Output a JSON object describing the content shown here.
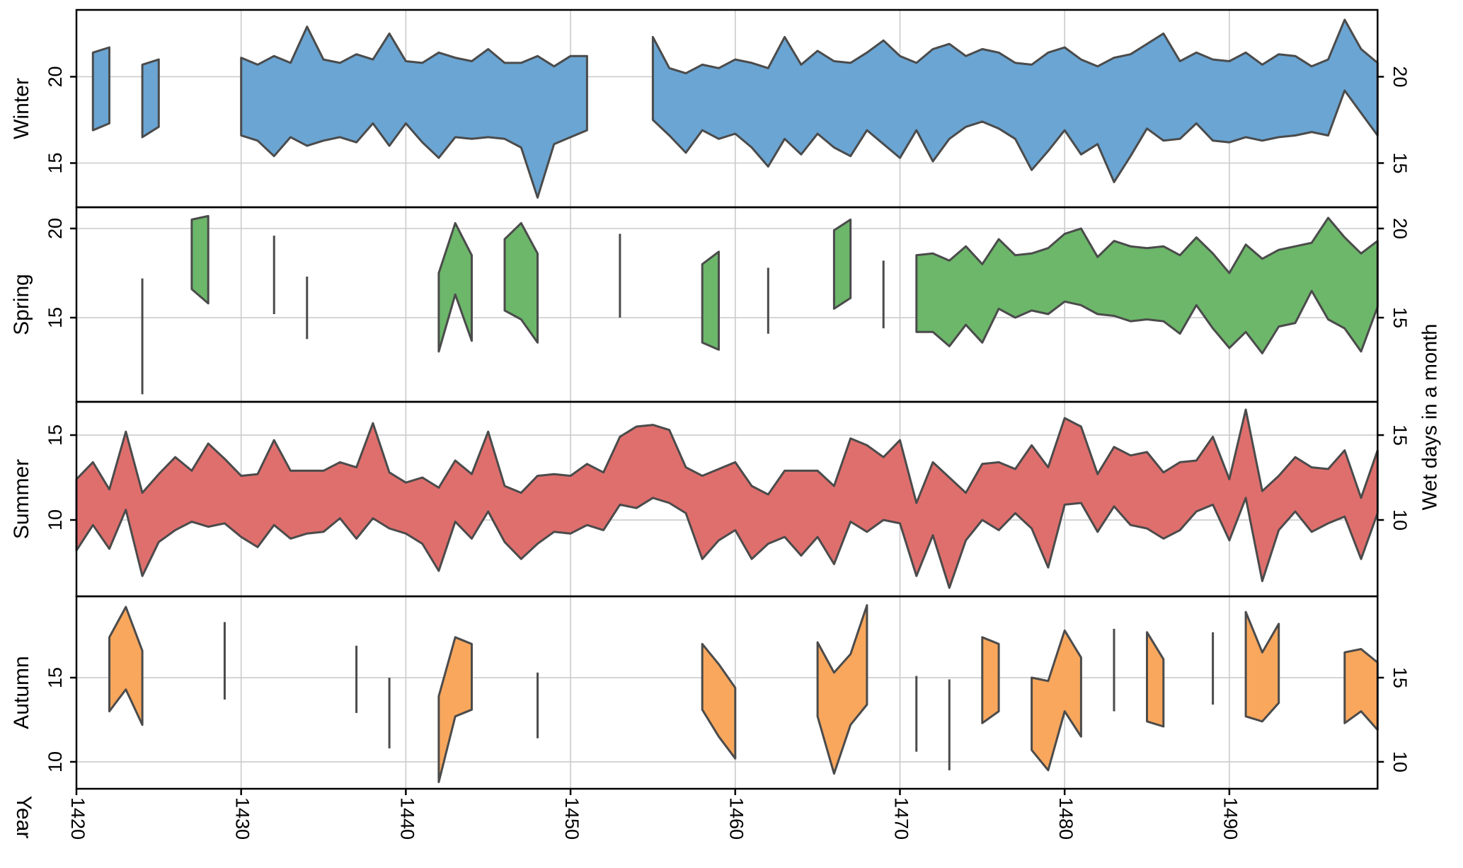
{
  "figure": {
    "xlabel": "Year",
    "ylabel_right": "Wet days in a month",
    "background": "#ffffff",
    "grid_color": "#cbcbcb",
    "border_color": "#000000",
    "outline_color": "#4b4b4b"
  },
  "chart_data": {
    "type": "area",
    "description": "Four stacked seasonal panels showing the min-max band of wet days per month by year; single isolated years drawn as vertical strokes; gaps indicate missing data.",
    "xlabel": "Year",
    "ylabel": "Wet days in a month",
    "x_range": [
      1420,
      1499
    ],
    "x_ticks": [
      1420,
      1430,
      1440,
      1450,
      1460,
      1470,
      1480,
      1490
    ],
    "grid": true,
    "legend_position": "none",
    "panels": [
      {
        "name": "winter",
        "label": "Winter",
        "color": "#6aa5d3",
        "ylim": [
          12.44,
          23.87
        ],
        "yticks": [
          20,
          15
        ],
        "series": [
          [
            1421,
            16.9,
            21.4
          ],
          [
            1422,
            17.3,
            21.7
          ],
          [
            1424,
            16.5,
            20.7
          ],
          [
            1425,
            17.1,
            21.0
          ],
          [
            1430,
            16.6,
            21.1
          ],
          [
            1431,
            16.3,
            20.7
          ],
          [
            1432,
            15.4,
            21.2
          ],
          [
            1433,
            16.5,
            20.8
          ],
          [
            1434,
            16.0,
            22.9
          ],
          [
            1435,
            16.3,
            21.0
          ],
          [
            1436,
            16.5,
            20.8
          ],
          [
            1437,
            16.2,
            21.3
          ],
          [
            1438,
            17.3,
            21.0
          ],
          [
            1439,
            16.0,
            22.5
          ],
          [
            1440,
            17.3,
            20.9
          ],
          [
            1441,
            16.2,
            20.8
          ],
          [
            1442,
            15.3,
            21.4
          ],
          [
            1443,
            16.5,
            21.1
          ],
          [
            1444,
            16.4,
            20.9
          ],
          [
            1445,
            16.5,
            21.6
          ],
          [
            1446,
            16.4,
            20.8
          ],
          [
            1447,
            15.9,
            20.8
          ],
          [
            1448,
            13.0,
            21.2
          ],
          [
            1449,
            16.1,
            20.6
          ],
          [
            1450,
            16.5,
            21.2
          ],
          [
            1451,
            16.9,
            21.2
          ],
          [
            1455,
            17.5,
            22.3
          ],
          [
            1456,
            16.6,
            20.5
          ],
          [
            1457,
            15.6,
            20.2
          ],
          [
            1458,
            16.9,
            20.7
          ],
          [
            1459,
            16.4,
            20.5
          ],
          [
            1460,
            16.7,
            21.0
          ],
          [
            1461,
            15.9,
            20.8
          ],
          [
            1462,
            14.8,
            20.5
          ],
          [
            1463,
            16.4,
            22.3
          ],
          [
            1464,
            15.5,
            20.7
          ],
          [
            1465,
            16.7,
            21.5
          ],
          [
            1466,
            15.9,
            20.9
          ],
          [
            1467,
            15.4,
            20.8
          ],
          [
            1468,
            16.9,
            21.4
          ],
          [
            1469,
            16.1,
            22.1
          ],
          [
            1470,
            15.3,
            21.2
          ],
          [
            1471,
            16.9,
            20.8
          ],
          [
            1472,
            15.1,
            21.6
          ],
          [
            1473,
            16.4,
            21.9
          ],
          [
            1474,
            17.1,
            21.2
          ],
          [
            1475,
            17.4,
            21.6
          ],
          [
            1476,
            17.0,
            21.4
          ],
          [
            1477,
            16.4,
            20.8
          ],
          [
            1478,
            14.6,
            20.7
          ],
          [
            1479,
            15.7,
            21.4
          ],
          [
            1480,
            16.9,
            21.7
          ],
          [
            1481,
            15.5,
            21.0
          ],
          [
            1482,
            16.1,
            20.6
          ],
          [
            1483,
            13.9,
            21.1
          ],
          [
            1484,
            15.4,
            21.3
          ],
          [
            1485,
            17.0,
            21.9
          ],
          [
            1486,
            16.3,
            22.5
          ],
          [
            1487,
            16.4,
            20.9
          ],
          [
            1488,
            17.3,
            21.4
          ],
          [
            1489,
            16.3,
            21.0
          ],
          [
            1490,
            16.2,
            20.9
          ],
          [
            1491,
            16.5,
            21.4
          ],
          [
            1492,
            16.3,
            20.7
          ],
          [
            1493,
            16.5,
            21.3
          ],
          [
            1494,
            16.6,
            21.2
          ],
          [
            1495,
            16.8,
            20.6
          ],
          [
            1496,
            16.6,
            21.0
          ],
          [
            1497,
            19.2,
            23.3
          ],
          [
            1498,
            17.9,
            21.6
          ],
          [
            1499,
            16.6,
            20.8
          ]
        ]
      },
      {
        "name": "spring",
        "label": "Spring",
        "color": "#6cb76a",
        "ylim": [
          10.28,
          21.19
        ],
        "yticks": [
          20,
          15
        ],
        "series": [
          [
            1424,
            10.7,
            17.2
          ],
          [
            1427,
            16.6,
            20.5
          ],
          [
            1428,
            15.8,
            20.7
          ],
          [
            1432,
            15.2,
            19.6
          ],
          [
            1434,
            13.8,
            17.3
          ],
          [
            1442,
            13.1,
            17.5
          ],
          [
            1443,
            16.3,
            20.3
          ],
          [
            1444,
            13.7,
            18.5
          ],
          [
            1446,
            15.4,
            19.4
          ],
          [
            1447,
            14.9,
            20.3
          ],
          [
            1448,
            13.6,
            18.6
          ],
          [
            1453,
            15.0,
            19.7
          ],
          [
            1458,
            13.6,
            18.0
          ],
          [
            1459,
            13.2,
            18.7
          ],
          [
            1462,
            14.1,
            17.8
          ],
          [
            1466,
            15.5,
            19.9
          ],
          [
            1467,
            16.1,
            20.5
          ],
          [
            1469,
            14.4,
            18.2
          ],
          [
            1471,
            14.2,
            18.5
          ],
          [
            1472,
            14.2,
            18.6
          ],
          [
            1473,
            13.4,
            18.2
          ],
          [
            1474,
            14.6,
            19.0
          ],
          [
            1475,
            13.6,
            18.0
          ],
          [
            1476,
            15.5,
            19.4
          ],
          [
            1477,
            15.0,
            18.5
          ],
          [
            1478,
            15.4,
            18.6
          ],
          [
            1479,
            15.2,
            18.9
          ],
          [
            1480,
            15.9,
            19.7
          ],
          [
            1481,
            15.7,
            20.0
          ],
          [
            1482,
            15.2,
            18.4
          ],
          [
            1483,
            15.1,
            19.3
          ],
          [
            1484,
            14.8,
            19.0
          ],
          [
            1485,
            14.9,
            18.9
          ],
          [
            1486,
            14.8,
            19.0
          ],
          [
            1487,
            14.1,
            18.5
          ],
          [
            1488,
            15.7,
            19.5
          ],
          [
            1489,
            14.4,
            18.6
          ],
          [
            1490,
            13.3,
            17.5
          ],
          [
            1491,
            14.2,
            19.1
          ],
          [
            1492,
            13.0,
            18.3
          ],
          [
            1493,
            14.5,
            18.8
          ],
          [
            1494,
            14.7,
            19.0
          ],
          [
            1495,
            16.5,
            19.2
          ],
          [
            1496,
            14.9,
            20.6
          ],
          [
            1497,
            14.4,
            19.5
          ],
          [
            1498,
            13.1,
            18.6
          ],
          [
            1499,
            15.6,
            19.3
          ]
        ]
      },
      {
        "name": "summer",
        "label": "Summer",
        "color": "#df6f6d",
        "ylim": [
          5.5,
          16.96
        ],
        "yticks": [
          15,
          10
        ],
        "series": [
          [
            1420,
            8.2,
            12.4
          ],
          [
            1421,
            9.7,
            13.4
          ],
          [
            1422,
            8.3,
            11.8
          ],
          [
            1423,
            10.6,
            15.2
          ],
          [
            1424,
            6.7,
            11.6
          ],
          [
            1425,
            8.7,
            12.7
          ],
          [
            1426,
            9.4,
            13.7
          ],
          [
            1427,
            9.9,
            12.9
          ],
          [
            1428,
            9.6,
            14.5
          ],
          [
            1429,
            9.8,
            13.6
          ],
          [
            1430,
            9.0,
            12.6
          ],
          [
            1431,
            8.4,
            12.7
          ],
          [
            1432,
            9.7,
            14.7
          ],
          [
            1433,
            8.9,
            12.9
          ],
          [
            1434,
            9.2,
            12.9
          ],
          [
            1435,
            9.3,
            12.9
          ],
          [
            1436,
            10.1,
            13.4
          ],
          [
            1437,
            8.9,
            13.1
          ],
          [
            1438,
            10.1,
            15.7
          ],
          [
            1439,
            9.5,
            12.8
          ],
          [
            1440,
            9.2,
            12.2
          ],
          [
            1441,
            8.6,
            12.5
          ],
          [
            1442,
            7.0,
            11.9
          ],
          [
            1443,
            9.9,
            13.5
          ],
          [
            1444,
            8.9,
            12.7
          ],
          [
            1445,
            10.5,
            15.2
          ],
          [
            1446,
            8.7,
            12.0
          ],
          [
            1447,
            7.7,
            11.6
          ],
          [
            1448,
            8.6,
            12.6
          ],
          [
            1449,
            9.3,
            12.7
          ],
          [
            1450,
            9.2,
            12.6
          ],
          [
            1451,
            9.7,
            13.3
          ],
          [
            1452,
            9.4,
            12.8
          ],
          [
            1453,
            10.9,
            14.9
          ],
          [
            1454,
            10.7,
            15.5
          ],
          [
            1455,
            11.3,
            15.6
          ],
          [
            1456,
            11.0,
            15.3
          ],
          [
            1457,
            10.4,
            13.1
          ],
          [
            1458,
            7.7,
            12.6
          ],
          [
            1459,
            8.8,
            13.0
          ],
          [
            1460,
            9.4,
            13.4
          ],
          [
            1461,
            7.7,
            12.0
          ],
          [
            1462,
            8.6,
            11.5
          ],
          [
            1463,
            9.0,
            12.9
          ],
          [
            1464,
            7.9,
            12.9
          ],
          [
            1465,
            9.0,
            12.9
          ],
          [
            1466,
            7.4,
            12.0
          ],
          [
            1467,
            9.9,
            14.8
          ],
          [
            1468,
            9.3,
            14.4
          ],
          [
            1469,
            10.0,
            13.7
          ],
          [
            1470,
            9.8,
            14.7
          ],
          [
            1471,
            6.7,
            11.0
          ],
          [
            1472,
            9.1,
            13.4
          ],
          [
            1473,
            6.0,
            12.5
          ],
          [
            1474,
            8.8,
            11.6
          ],
          [
            1475,
            10.0,
            13.3
          ],
          [
            1476,
            9.4,
            13.4
          ],
          [
            1477,
            10.4,
            13.0
          ],
          [
            1478,
            9.5,
            14.4
          ],
          [
            1479,
            7.2,
            13.1
          ],
          [
            1480,
            10.9,
            16.0
          ],
          [
            1481,
            11.0,
            15.5
          ],
          [
            1482,
            9.3,
            12.7
          ],
          [
            1483,
            10.8,
            14.3
          ],
          [
            1484,
            9.7,
            13.8
          ],
          [
            1485,
            9.5,
            14.0
          ],
          [
            1486,
            8.9,
            12.8
          ],
          [
            1487,
            9.4,
            13.4
          ],
          [
            1488,
            10.5,
            13.5
          ],
          [
            1489,
            10.9,
            14.9
          ],
          [
            1490,
            8.8,
            12.4
          ],
          [
            1491,
            11.3,
            16.5
          ],
          [
            1492,
            6.4,
            11.7
          ],
          [
            1493,
            9.4,
            12.6
          ],
          [
            1494,
            10.5,
            13.7
          ],
          [
            1495,
            9.3,
            13.1
          ],
          [
            1496,
            9.8,
            13.0
          ],
          [
            1497,
            10.2,
            14.1
          ],
          [
            1498,
            7.7,
            11.3
          ],
          [
            1499,
            10.4,
            14.1
          ]
        ]
      },
      {
        "name": "autumn",
        "label": "Autumn",
        "color": "#f8a75d",
        "ylim": [
          8.4,
          19.83
        ],
        "yticks": [
          15,
          10
        ],
        "series": [
          [
            1422,
            13.0,
            17.4
          ],
          [
            1423,
            14.3,
            19.2
          ],
          [
            1424,
            12.2,
            16.6
          ],
          [
            1429,
            13.7,
            18.3
          ],
          [
            1437,
            12.9,
            16.9
          ],
          [
            1439,
            10.8,
            15.0
          ],
          [
            1442,
            8.8,
            13.9
          ],
          [
            1443,
            12.7,
            17.4
          ],
          [
            1444,
            13.1,
            17.0
          ],
          [
            1448,
            11.4,
            15.3
          ],
          [
            1458,
            13.1,
            17.0
          ],
          [
            1459,
            11.5,
            15.8
          ],
          [
            1460,
            10.2,
            14.4
          ],
          [
            1465,
            12.7,
            17.1
          ],
          [
            1466,
            9.3,
            15.3
          ],
          [
            1467,
            12.2,
            16.4
          ],
          [
            1468,
            13.4,
            19.3
          ],
          [
            1471,
            10.6,
            15.1
          ],
          [
            1473,
            9.5,
            14.9
          ],
          [
            1475,
            12.3,
            17.4
          ],
          [
            1476,
            13.0,
            17.0
          ],
          [
            1478,
            10.7,
            15.0
          ],
          [
            1479,
            9.5,
            14.8
          ],
          [
            1480,
            13.0,
            17.8
          ],
          [
            1481,
            11.5,
            16.2
          ],
          [
            1483,
            13.0,
            17.9
          ],
          [
            1485,
            12.4,
            17.7
          ],
          [
            1486,
            12.1,
            16.1
          ],
          [
            1489,
            13.4,
            17.7
          ],
          [
            1491,
            12.7,
            18.9
          ],
          [
            1492,
            12.4,
            16.5
          ],
          [
            1493,
            13.5,
            18.2
          ],
          [
            1497,
            12.3,
            16.5
          ],
          [
            1498,
            13.0,
            16.7
          ],
          [
            1499,
            11.9,
            15.9
          ]
        ]
      }
    ]
  }
}
